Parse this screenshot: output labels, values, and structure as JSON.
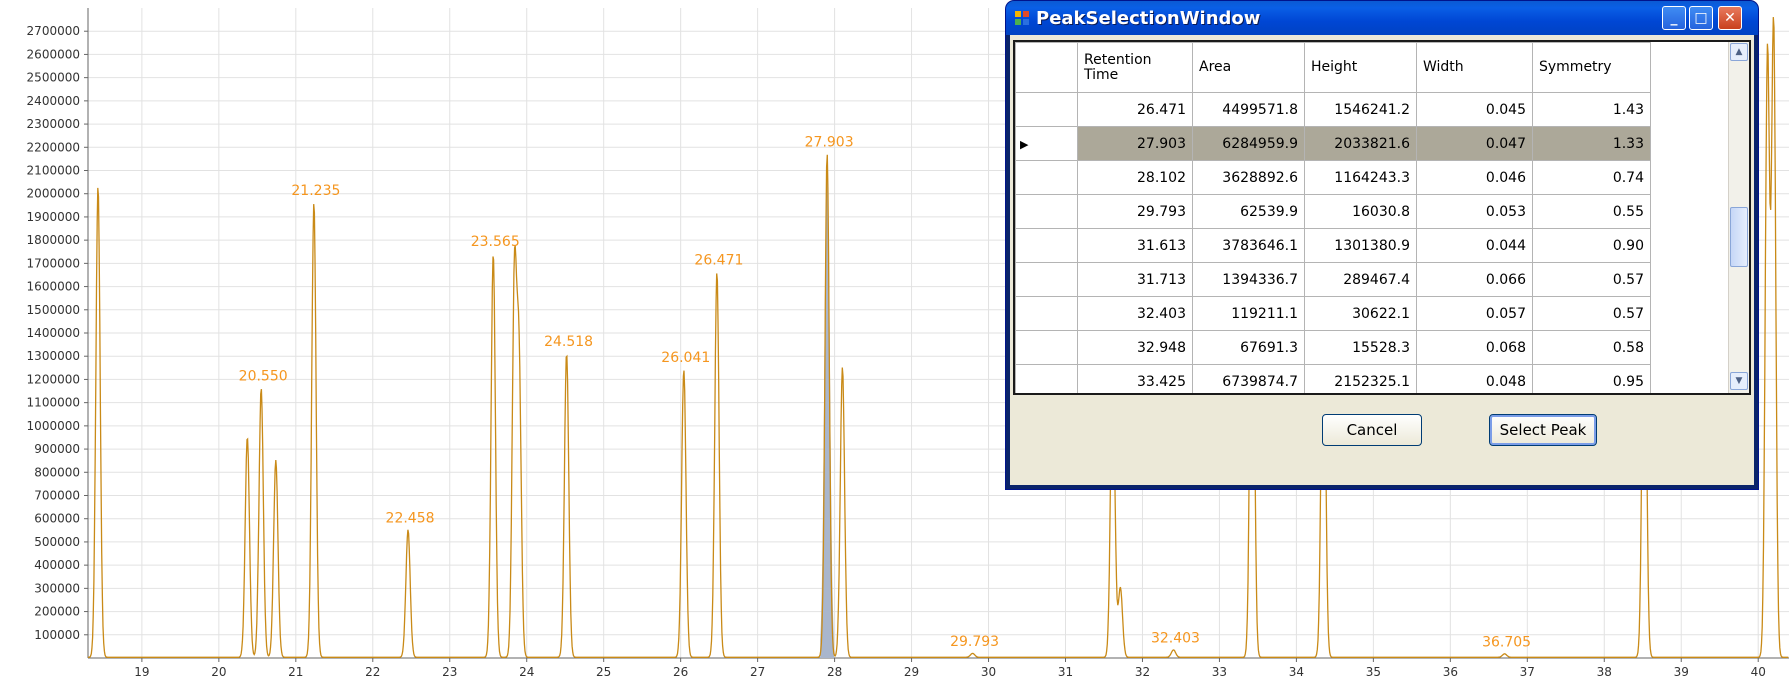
{
  "chart_data": {
    "type": "line",
    "xlim": [
      18.3,
      40.4
    ],
    "ylim": [
      0,
      2800000
    ],
    "x_ticks": [
      19,
      20,
      21,
      22,
      23,
      24,
      25,
      26,
      27,
      28,
      29,
      30,
      31,
      32,
      33,
      34,
      35,
      36,
      37,
      38,
      39,
      40
    ],
    "y_ticks": [
      100000,
      200000,
      300000,
      400000,
      500000,
      600000,
      700000,
      800000,
      900000,
      1000000,
      1100000,
      1200000,
      1300000,
      1400000,
      1500000,
      1600000,
      1700000,
      1800000,
      1900000,
      2000000,
      2100000,
      2200000,
      2300000,
      2400000,
      2500000,
      2600000,
      2700000
    ],
    "y_tick_labels": [
      "100000",
      "200000",
      "300000",
      "400000",
      "500000",
      "600000",
      "700000",
      "800000",
      "900000",
      "1000000",
      "1100000",
      "1200000",
      "1300000",
      "1400000",
      "1500000",
      "1600000",
      "1700000",
      "1800000",
      "1900000",
      "2000000",
      "2100000",
      "2200000",
      "2300000",
      "2400000",
      "2500000",
      "2600000",
      "2700000"
    ],
    "grid": true,
    "line_color": "#c98a17",
    "label_color": "#f5961f",
    "highlight_color": "#a9b6cc",
    "highlight_peak": 27.903,
    "peaks": [
      {
        "x": 18.43,
        "y": 2030000
      },
      {
        "x": 20.37,
        "y": 950000
      },
      {
        "x": 20.55,
        "y": 1160000
      },
      {
        "x": 20.74,
        "y": 850000
      },
      {
        "x": 21.235,
        "y": 1960000
      },
      {
        "x": 22.458,
        "y": 550000
      },
      {
        "x": 23.565,
        "y": 1740000
      },
      {
        "x": 23.84,
        "y": 1620000
      },
      {
        "x": 23.9,
        "y": 1260000
      },
      {
        "x": 24.518,
        "y": 1310000
      },
      {
        "x": 26.041,
        "y": 1240000
      },
      {
        "x": 26.471,
        "y": 1660000
      },
      {
        "x": 27.903,
        "y": 2170000
      },
      {
        "x": 28.102,
        "y": 1250000
      },
      {
        "x": 29.793,
        "y": 17000
      },
      {
        "x": 31.613,
        "y": 1300000
      },
      {
        "x": 31.713,
        "y": 300000
      },
      {
        "x": 32.403,
        "y": 32000
      },
      {
        "x": 33.425,
        "y": 2150000
      },
      {
        "x": 34.35,
        "y": 1700000
      },
      {
        "x": 36.705,
        "y": 15000
      },
      {
        "x": 38.52,
        "y": 1800000
      },
      {
        "x": 40.12,
        "y": 2600000
      },
      {
        "x": 40.2,
        "y": 2720000
      }
    ],
    "peak_labels": [
      {
        "x": 20.55,
        "y": 1160000,
        "text": "20.550"
      },
      {
        "x": 21.235,
        "y": 1960000,
        "text": "21.235"
      },
      {
        "x": 22.458,
        "y": 550000,
        "text": "22.458"
      },
      {
        "x": 23.565,
        "y": 1740000,
        "text": "23.565"
      },
      {
        "x": 24.518,
        "y": 1310000,
        "text": "24.518"
      },
      {
        "x": 26.041,
        "y": 1240000,
        "text": "26.041"
      },
      {
        "x": 26.471,
        "y": 1660000,
        "text": "26.471"
      },
      {
        "x": 27.903,
        "y": 2170000,
        "text": "27.903"
      },
      {
        "x": 29.793,
        "y": 17000,
        "text": "29.793"
      },
      {
        "x": 32.403,
        "y": 32000,
        "text": "32.403"
      },
      {
        "x": 36.705,
        "y": 15000,
        "text": "36.705"
      }
    ]
  },
  "window": {
    "title": "PeakSelectionWindow",
    "minimize": "_",
    "maximize": "□",
    "close": "✕",
    "columns": [
      "Retention Time",
      "Area",
      "Height",
      "Width",
      "Symmetry"
    ],
    "rows": [
      [
        "26.471",
        "4499571.8",
        "1546241.2",
        "0.045",
        "1.43"
      ],
      [
        "27.903",
        "6284959.9",
        "2033821.6",
        "0.047",
        "1.33"
      ],
      [
        "28.102",
        "3628892.6",
        "1164243.3",
        "0.046",
        "0.74"
      ],
      [
        "29.793",
        "62539.9",
        "16030.8",
        "0.053",
        "0.55"
      ],
      [
        "31.613",
        "3783646.1",
        "1301380.9",
        "0.044",
        "0.90"
      ],
      [
        "31.713",
        "1394336.7",
        "289467.4",
        "0.066",
        "0.57"
      ],
      [
        "32.403",
        "119211.1",
        "30622.1",
        "0.057",
        "0.57"
      ],
      [
        "32.948",
        "67691.3",
        "15528.3",
        "0.068",
        "0.58"
      ],
      [
        "33.425",
        "6739874.7",
        "2152325.1",
        "0.048",
        "0.95"
      ]
    ],
    "selected_row": 1,
    "row_marker": "▶",
    "scroll_up": "▲",
    "scroll_down": "▼",
    "cancel_label": "Cancel",
    "select_label": "Select Peak"
  }
}
